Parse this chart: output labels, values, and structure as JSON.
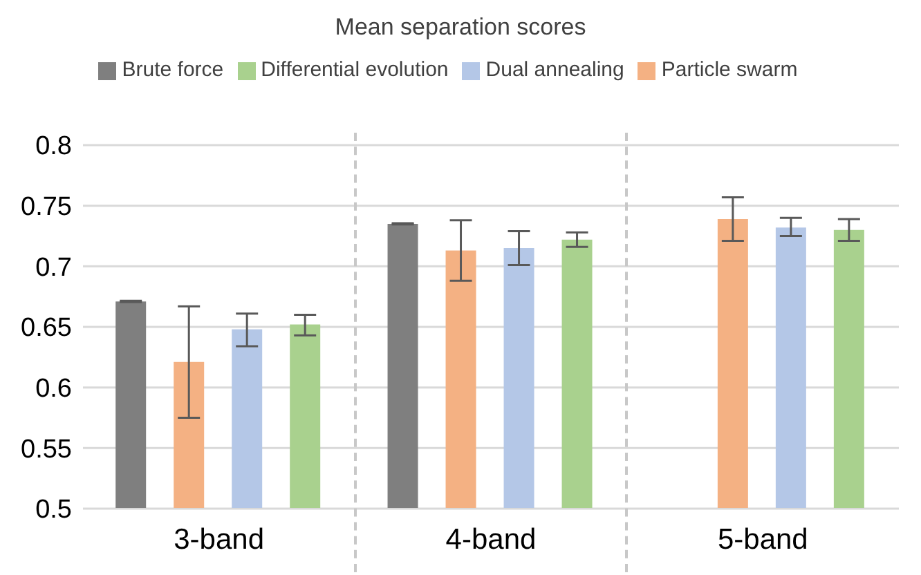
{
  "chart_data": {
    "type": "bar",
    "title": "Mean separation scores",
    "categories": [
      "3-band",
      "4-band",
      "5-band"
    ],
    "series": [
      {
        "name": "Brute force",
        "color": "#7f7f7f",
        "values": [
          0.671,
          0.735,
          null
        ],
        "errors": [
          0.0005,
          0.0005,
          null
        ]
      },
      {
        "name": "Particle swarm",
        "color": "#f4b183",
        "values": [
          0.621,
          0.713,
          0.739
        ],
        "errors": [
          [
            0.575,
            0.667
          ],
          [
            0.688,
            0.738
          ],
          [
            0.721,
            0.757
          ]
        ]
      },
      {
        "name": "Dual annealing",
        "color": "#b4c7e7",
        "values": [
          0.648,
          0.715,
          0.732
        ],
        "errors": [
          [
            0.634,
            0.661
          ],
          [
            0.701,
            0.729
          ],
          [
            0.725,
            0.74
          ]
        ]
      },
      {
        "name": "Differential evolution",
        "color": "#a9d18e",
        "values": [
          0.652,
          0.722,
          0.73
        ],
        "errors": [
          [
            0.643,
            0.66
          ],
          [
            0.716,
            0.728
          ],
          [
            0.721,
            0.739
          ]
        ]
      }
    ],
    "ylim": [
      0.5,
      0.8
    ],
    "yticks": [
      0.5,
      0.55,
      0.6,
      0.65,
      0.7,
      0.75,
      0.8
    ],
    "grid": "y",
    "legend": "top"
  }
}
